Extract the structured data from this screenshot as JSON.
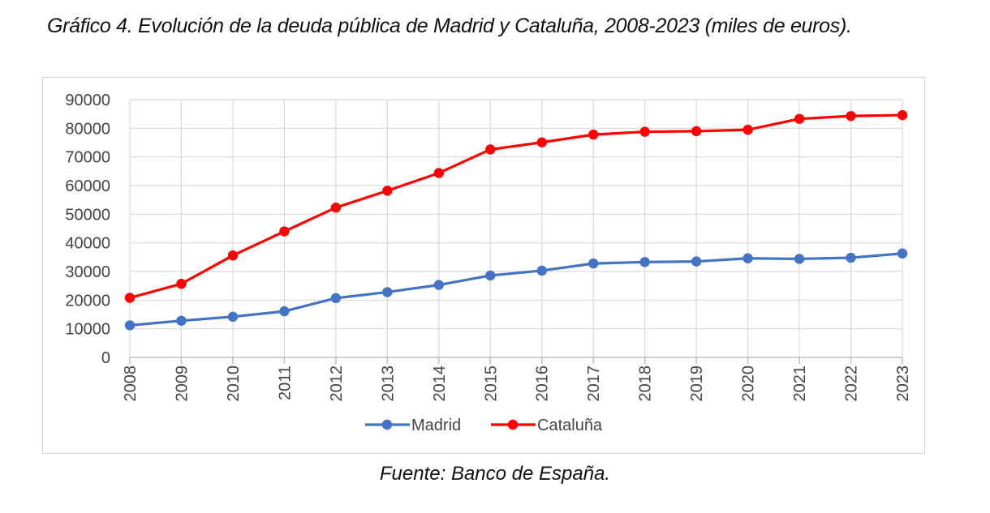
{
  "title": "Gráfico 4. Evolución de la deuda pública de Madrid y Cataluña, 2008-2023 (miles de euros).",
  "source": "Fuente: Banco de España.",
  "chart_data": {
    "type": "line",
    "categories": [
      "2008",
      "2009",
      "2010",
      "2011",
      "2012",
      "2013",
      "2014",
      "2015",
      "2016",
      "2017",
      "2018",
      "2019",
      "2020",
      "2021",
      "2022",
      "2023"
    ],
    "series": [
      {
        "name": "Madrid",
        "color": "#4472c4",
        "values": [
          11200,
          12800,
          14200,
          16100,
          20700,
          22800,
          25300,
          28600,
          30300,
          32800,
          33300,
          33500,
          34600,
          34400,
          34800,
          36300
        ]
      },
      {
        "name": "Cataluña",
        "color": "#ff0000",
        "values": [
          20800,
          25700,
          35600,
          44000,
          52300,
          58200,
          64400,
          72600,
          75100,
          77800,
          78800,
          79000,
          79500,
          83300,
          84300,
          84600
        ]
      }
    ],
    "ylim": [
      0,
      90000
    ],
    "yticks": [
      "0",
      "10000",
      "20000",
      "30000",
      "40000",
      "50000",
      "60000",
      "70000",
      "80000",
      "90000"
    ],
    "grid": true,
    "legend": "bottom",
    "xlabel": "",
    "ylabel": ""
  }
}
